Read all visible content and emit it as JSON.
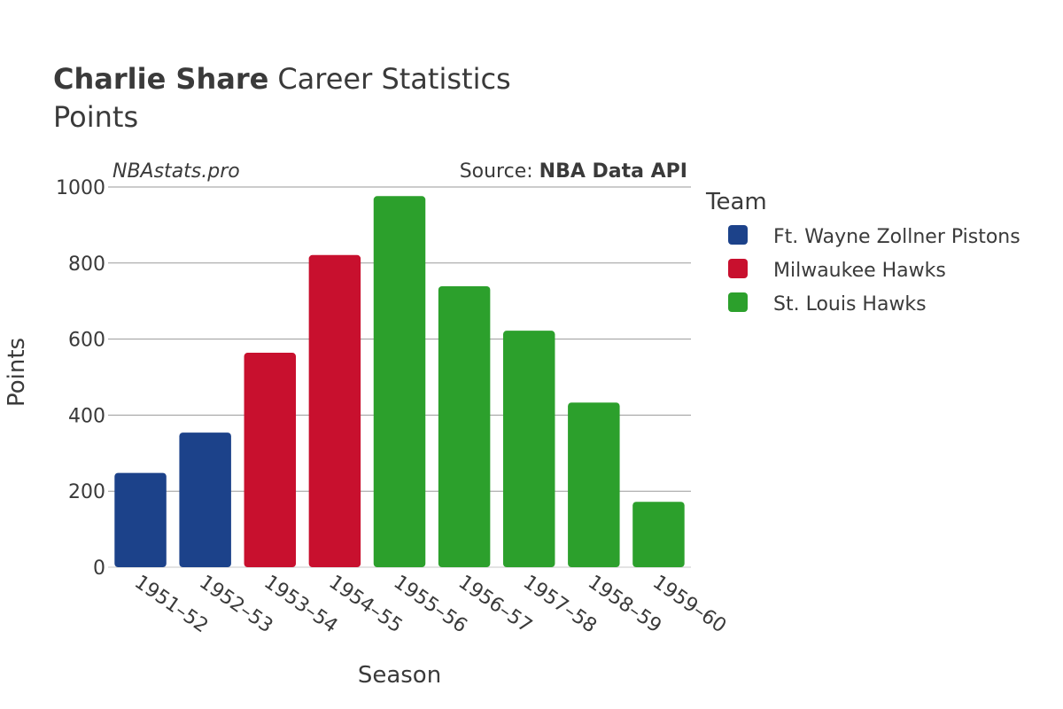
{
  "chart_data": {
    "type": "bar",
    "title_bold": "Charlie Share",
    "title_rest": "Career Statistics",
    "subtitle": "Points",
    "watermark": "NBAstats.pro",
    "source_label": "Source: ",
    "source_name": "NBA Data API",
    "xlabel": "Season",
    "ylabel": "Points",
    "ylim": [
      0,
      1000
    ],
    "yticks": [
      0,
      200,
      400,
      600,
      800,
      1000
    ],
    "legend_title": "Team",
    "teams": [
      {
        "name": "Ft. Wayne Zollner Pistons",
        "color": "#1c428a"
      },
      {
        "name": "Milwaukee Hawks",
        "color": "#c8102e"
      },
      {
        "name": "St. Louis Hawks",
        "color": "#2ca02c"
      }
    ],
    "categories": [
      "1951–52",
      "1952–53",
      "1953–54",
      "1954–55",
      "1955–56",
      "1956–57",
      "1957–58",
      "1958–59",
      "1959–60"
    ],
    "values": [
      248,
      354,
      564,
      821,
      976,
      739,
      622,
      433,
      172
    ],
    "team_index": [
      0,
      0,
      1,
      1,
      2,
      2,
      2,
      2,
      2
    ]
  }
}
